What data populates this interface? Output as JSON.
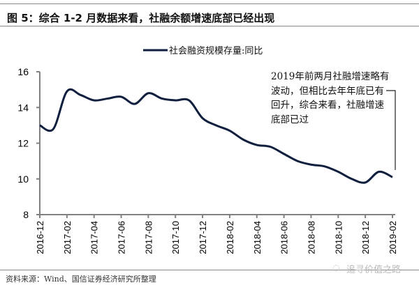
{
  "header": {
    "title": "图 5：综合 1-2 月数据来看，社融余额增速底部已经出现"
  },
  "footer": {
    "source": "资料来源：Wind、国信证券经济研究所整理",
    "watermark": "追寻价值之路"
  },
  "colors": {
    "line": "#0f1f3d",
    "axis": "#808080",
    "rule": "#888888"
  },
  "chart_data": {
    "type": "line",
    "title": "",
    "xlabel": "",
    "ylabel": "",
    "ylim": [
      8,
      16
    ],
    "yticks": [
      "8",
      "10",
      "12",
      "14",
      "16"
    ],
    "grid": false,
    "legend_position": "top-center",
    "x": [
      "2016-12",
      "2017-01",
      "2017-02",
      "2017-03",
      "2017-04",
      "2017-05",
      "2017-06",
      "2017-07",
      "2017-08",
      "2017-09",
      "2017-10",
      "2017-11",
      "2017-12",
      "2018-01",
      "2018-02",
      "2018-03",
      "2018-04",
      "2018-05",
      "2018-06",
      "2018-07",
      "2018-08",
      "2018-09",
      "2018-10",
      "2018-11",
      "2018-12",
      "2019-01",
      "2019-02"
    ],
    "xtick_labels": [
      "2016-12",
      "2017-02",
      "2017-04",
      "2017-06",
      "2017-08",
      "2017-10",
      "2017-12",
      "2018-02",
      "2018-04",
      "2018-06",
      "2018-08",
      "2018-10",
      "2018-12",
      "2019-02"
    ],
    "series": [
      {
        "name": "社会融资规模存量:同比",
        "values": [
          13.0,
          12.8,
          14.9,
          14.7,
          14.4,
          14.5,
          14.6,
          14.2,
          14.8,
          14.5,
          14.4,
          14.4,
          13.4,
          13.0,
          12.7,
          12.2,
          11.9,
          11.8,
          11.4,
          11.0,
          10.8,
          10.7,
          10.4,
          10.0,
          9.8,
          10.4,
          10.1
        ]
      }
    ],
    "annotation": "2019年前两月社融增速略有波动，但相比去年年底已有回升，综合来看，社融增速底部已过"
  }
}
